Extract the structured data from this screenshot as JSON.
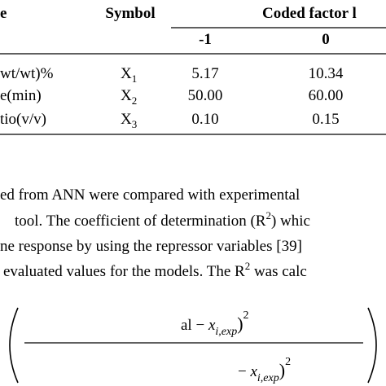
{
  "table": {
    "header": [
      "e",
      "Symbol",
      "Coded factor l"
    ],
    "subheader": [
      "-1",
      "0"
    ],
    "rows": [
      [
        {
          "text": "wt/wt)%"
        },
        {
          "base": "X",
          "sub": "1"
        },
        {
          "text": "5.17"
        },
        {
          "text": "10.34"
        }
      ],
      [
        {
          "text": "e(min)"
        },
        {
          "base": "X",
          "sub": "2"
        },
        {
          "text": "50.00"
        },
        {
          "text": "60.00"
        }
      ],
      [
        {
          "text": "tio(v/v)"
        },
        {
          "base": "X",
          "sub": "3"
        },
        {
          "text": "0.10"
        },
        {
          "text": "0.15"
        }
      ]
    ]
  },
  "paragraph": [
    {
      "before": "ed from ANN were compared with experimental"
    },
    {
      "before": "tool. The coefficient of determination (R",
      "sup": "2",
      "after": ") whic"
    },
    {
      "before": "ne response by using the repressor variables [39]"
    },
    {
      "before": "evaluated values for the models. The R",
      "sup": "2",
      "after": " was calc"
    }
  ],
  "formula": {
    "numerator": {
      "text": "al − ",
      "var": "x",
      "sub": "i,exp",
      "close": ")",
      "sup": "2"
    },
    "denominator": {
      "text": "− ",
      "var": "x",
      "sub": "i,exp",
      "close": ")",
      "sup": "2"
    }
  }
}
